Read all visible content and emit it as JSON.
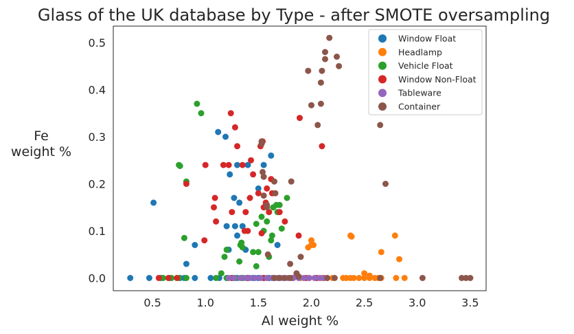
{
  "chart_data": {
    "type": "scatter",
    "title": "Glass of the UK database by Type - after SMOTE oversampling",
    "xlabel": "Al weight %",
    "ylabel_lines": [
      "Fe",
      "weight %"
    ],
    "xlim": [
      0.13,
      3.65
    ],
    "ylim": [
      -0.027,
      0.535
    ],
    "xticks": [
      0.5,
      1.0,
      1.5,
      2.0,
      2.5,
      3.0,
      3.5
    ],
    "yticks": [
      0.0,
      0.1,
      0.2,
      0.3,
      0.4,
      0.5
    ],
    "xtick_labels": [
      "0.5",
      "1.0",
      "1.5",
      "2.0",
      "2.5",
      "3.0",
      "3.5"
    ],
    "ytick_labels": [
      "0.0",
      "0.1",
      "0.2",
      "0.3",
      "0.4",
      "0.5"
    ],
    "grid": false,
    "legend_position": "top-right",
    "series": [
      {
        "name": "Window Float",
        "color": "#1f77b4",
        "points": [
          [
            0.29,
            0
          ],
          [
            0.47,
            0
          ],
          [
            0.58,
            0
          ],
          [
            0.66,
            0
          ],
          [
            0.76,
            0
          ],
          [
            0.8,
            0
          ],
          [
            0.9,
            0
          ],
          [
            1.05,
            0
          ],
          [
            1.13,
            0
          ],
          [
            1.2,
            0
          ],
          [
            1.25,
            0
          ],
          [
            1.3,
            0
          ],
          [
            1.35,
            0
          ],
          [
            1.4,
            0
          ],
          [
            1.45,
            0
          ],
          [
            1.5,
            0
          ],
          [
            1.55,
            0
          ],
          [
            1.6,
            0
          ],
          [
            1.65,
            0
          ],
          [
            0.51,
            0.16
          ],
          [
            0.82,
            0.03
          ],
          [
            0.9,
            0.07
          ],
          [
            1.12,
            0.31
          ],
          [
            1.19,
            0.3
          ],
          [
            1.2,
            0.11
          ],
          [
            1.22,
            0.06
          ],
          [
            1.23,
            0.22
          ],
          [
            1.27,
            0.17
          ],
          [
            1.28,
            0.11
          ],
          [
            1.3,
            0.24
          ],
          [
            1.3,
            0.09
          ],
          [
            1.32,
            0.16
          ],
          [
            1.35,
            0.11
          ],
          [
            1.38,
            0.06
          ],
          [
            1.4,
            0.24
          ],
          [
            1.5,
            0.19
          ],
          [
            1.55,
            0.24
          ],
          [
            1.62,
            0.26
          ],
          [
            1.68,
            0.07
          ]
        ]
      },
      {
        "name": "Headlamp",
        "color": "#ff7f0e",
        "points": [
          [
            1.97,
            0.065
          ],
          [
            2.0,
            0.08
          ],
          [
            2.0,
            0.07
          ],
          [
            2.02,
            0.07
          ],
          [
            2.37,
            0.09
          ],
          [
            2.38,
            0.088
          ],
          [
            2.66,
            0.055
          ],
          [
            2.79,
            0.09
          ],
          [
            2.83,
            0.04
          ],
          [
            2.5,
            0.01
          ],
          [
            2.55,
            0.005
          ],
          [
            1.9,
            0
          ],
          [
            1.98,
            0
          ],
          [
            2.05,
            0
          ],
          [
            2.1,
            0
          ],
          [
            2.15,
            0
          ],
          [
            2.2,
            0
          ],
          [
            2.3,
            0
          ],
          [
            2.33,
            0
          ],
          [
            2.37,
            0
          ],
          [
            2.4,
            0
          ],
          [
            2.45,
            0
          ],
          [
            2.5,
            0
          ],
          [
            2.55,
            0
          ],
          [
            2.6,
            0
          ],
          [
            2.63,
            0
          ],
          [
            2.66,
            0
          ],
          [
            2.8,
            0
          ],
          [
            2.88,
            0
          ]
        ]
      },
      {
        "name": "Vehicle Float",
        "color": "#2ca02c",
        "points": [
          [
            0.92,
            0.37
          ],
          [
            0.96,
            0.35
          ],
          [
            0.75,
            0.24
          ],
          [
            0.76,
            0.238
          ],
          [
            0.82,
            0.205
          ],
          [
            0.8,
            0.085
          ],
          [
            1.15,
            0.01
          ],
          [
            1.18,
            0.045
          ],
          [
            1.2,
            0.06
          ],
          [
            1.32,
            0.035
          ],
          [
            1.33,
            0.07
          ],
          [
            1.34,
            0.075
          ],
          [
            1.35,
            0.065
          ],
          [
            1.4,
            0.0
          ],
          [
            1.45,
            0.055
          ],
          [
            1.48,
            0.025
          ],
          [
            1.5,
            0.055
          ],
          [
            1.48,
            0.115
          ],
          [
            1.53,
            0.13
          ],
          [
            1.55,
            0.1
          ],
          [
            1.58,
            0.12
          ],
          [
            1.6,
            0.045
          ],
          [
            1.62,
            0.08
          ],
          [
            1.63,
            0.09
          ],
          [
            1.64,
            0.15
          ],
          [
            1.67,
            0.155
          ],
          [
            1.7,
            0.155
          ],
          [
            1.68,
            0.14
          ],
          [
            1.72,
            0.105
          ],
          [
            1.77,
            0.17
          ],
          [
            0.6,
            0
          ],
          [
            0.68,
            0
          ],
          [
            0.75,
            0
          ],
          [
            0.82,
            0
          ],
          [
            1.1,
            0
          ],
          [
            1.2,
            0
          ],
          [
            1.28,
            0
          ],
          [
            1.35,
            0
          ]
        ]
      },
      {
        "name": "Window Non-Float",
        "color": "#d62728",
        "points": [
          [
            0.56,
            0
          ],
          [
            0.65,
            0
          ],
          [
            0.73,
            0
          ],
          [
            0.82,
            0.2
          ],
          [
            0.99,
            0.08
          ],
          [
            1.0,
            0.24
          ],
          [
            1.08,
            0.15
          ],
          [
            1.09,
            0.17
          ],
          [
            1.1,
            0.12
          ],
          [
            1.17,
            0.24
          ],
          [
            1.22,
            0.24
          ],
          [
            1.24,
            0.35
          ],
          [
            1.25,
            0.14
          ],
          [
            1.28,
            0.32
          ],
          [
            1.3,
            0.28
          ],
          [
            1.35,
            0.24
          ],
          [
            1.37,
            0.1
          ],
          [
            1.38,
            0.14
          ],
          [
            1.4,
            0.1
          ],
          [
            1.42,
            0.17
          ],
          [
            1.43,
            0.25
          ],
          [
            1.45,
            0.22
          ],
          [
            1.5,
            0.18
          ],
          [
            1.52,
            0.28
          ],
          [
            1.53,
            0.095
          ],
          [
            1.54,
            0.29
          ],
          [
            1.55,
            0.15
          ],
          [
            1.57,
            0.16
          ],
          [
            1.58,
            0.19
          ],
          [
            1.6,
            0.14
          ],
          [
            1.62,
            0.21
          ],
          [
            1.63,
            0.18
          ],
          [
            1.7,
            0.14
          ],
          [
            1.75,
            0.12
          ],
          [
            1.88,
            0.09
          ],
          [
            1.89,
            0.34
          ],
          [
            2.1,
            0.28
          ],
          [
            1.25,
            0
          ],
          [
            1.4,
            0
          ],
          [
            1.55,
            0
          ],
          [
            1.7,
            0
          ],
          [
            1.82,
            0
          ],
          [
            1.95,
            0
          ],
          [
            2.05,
            0
          ],
          [
            2.12,
            0
          ]
        ]
      },
      {
        "name": "Tableware",
        "color": "#9467bd",
        "points": [
          [
            1.22,
            0
          ],
          [
            1.27,
            0
          ],
          [
            1.33,
            0
          ],
          [
            1.38,
            0
          ],
          [
            1.42,
            0
          ],
          [
            1.47,
            0
          ],
          [
            1.52,
            0
          ],
          [
            1.58,
            0
          ],
          [
            1.63,
            0
          ],
          [
            1.68,
            0
          ],
          [
            1.73,
            0
          ],
          [
            1.78,
            0
          ],
          [
            1.83,
            0
          ],
          [
            1.88,
            0
          ],
          [
            1.93,
            0
          ],
          [
            1.98,
            0
          ],
          [
            2.03,
            0
          ],
          [
            2.08,
            0
          ],
          [
            2.12,
            0
          ]
        ]
      },
      {
        "name": "Container",
        "color": "#8c564b",
        "points": [
          [
            2.17,
            0.51
          ],
          [
            2.13,
            0.48
          ],
          [
            2.13,
            0.465
          ],
          [
            2.24,
            0.47
          ],
          [
            2.26,
            0.45
          ],
          [
            1.97,
            0.44
          ],
          [
            2.1,
            0.44
          ],
          [
            2.09,
            0.415
          ],
          [
            2.09,
            0.37
          ],
          [
            2.0,
            0.367
          ],
          [
            2.06,
            0.325
          ],
          [
            2.65,
            0.325
          ],
          [
            2.7,
            0.2
          ],
          [
            1.53,
            0.29
          ],
          [
            1.53,
            0.285
          ],
          [
            1.54,
            0.225
          ],
          [
            1.55,
            0.215
          ],
          [
            1.55,
            0.175
          ],
          [
            1.58,
            0.155
          ],
          [
            1.58,
            0.15
          ],
          [
            1.65,
            0.205
          ],
          [
            1.66,
            0.18
          ],
          [
            1.59,
            0.05
          ],
          [
            1.81,
            0.205
          ],
          [
            1.8,
            0.03
          ],
          [
            1.9,
            0.045
          ],
          [
            1.86,
            0.01
          ],
          [
            1.88,
            0.003
          ],
          [
            2.15,
            0
          ],
          [
            2.22,
            0
          ],
          [
            2.65,
            0
          ],
          [
            3.05,
            0
          ],
          [
            3.42,
            0
          ],
          [
            3.46,
            0
          ],
          [
            3.5,
            0
          ],
          [
            1.65,
            0
          ],
          [
            1.7,
            0
          ],
          [
            1.75,
            0
          ],
          [
            1.8,
            0
          ]
        ]
      }
    ]
  }
}
